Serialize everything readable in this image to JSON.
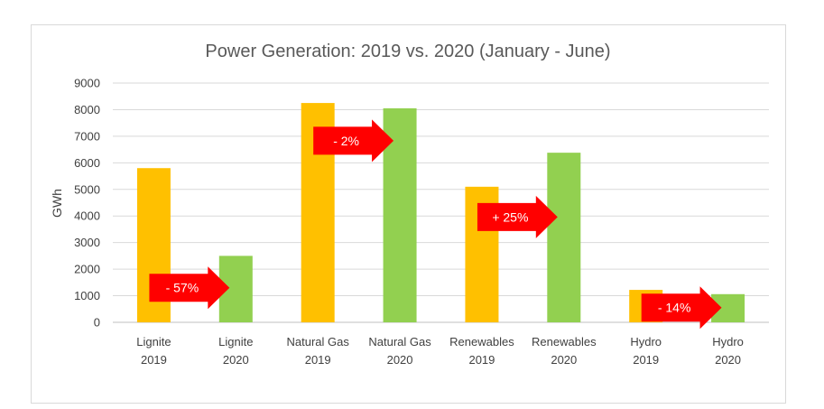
{
  "chart_data": {
    "type": "bar",
    "title": "Power Generation: 2019 vs. 2020 (January - June)",
    "xlabel": "",
    "ylabel": "GWh",
    "ylim": [
      0,
      9000
    ],
    "yticks": [
      0,
      1000,
      2000,
      3000,
      4000,
      5000,
      6000,
      7000,
      8000,
      9000
    ],
    "grid": true,
    "legend": "none",
    "categories": [
      [
        "Lignite",
        "2019"
      ],
      [
        "Lignite",
        "2020"
      ],
      [
        "Natural Gas",
        "2019"
      ],
      [
        "Natural Gas",
        "2020"
      ],
      [
        "Renewables",
        "2019"
      ],
      [
        "Renewables",
        "2020"
      ],
      [
        "Hydro",
        "2019"
      ],
      [
        "Hydro",
        "2020"
      ]
    ],
    "values": [
      5800,
      2500,
      8250,
      8050,
      5100,
      6380,
      1220,
      1060
    ],
    "bar_colors": [
      "#ffc000",
      "#92d050",
      "#ffc000",
      "#92d050",
      "#ffc000",
      "#92d050",
      "#ffc000",
      "#92d050"
    ],
    "annotations": [
      {
        "text": "- 57%",
        "from": 0,
        "to": 1,
        "y": 1300
      },
      {
        "text": "- 2%",
        "from": 2,
        "to": 3,
        "y": 6830
      },
      {
        "text": "+ 25%",
        "from": 4,
        "to": 5,
        "y": 3960
      },
      {
        "text": "- 14%",
        "from": 6,
        "to": 7,
        "y": 550
      }
    ],
    "arrow_color": "#ff0000"
  }
}
